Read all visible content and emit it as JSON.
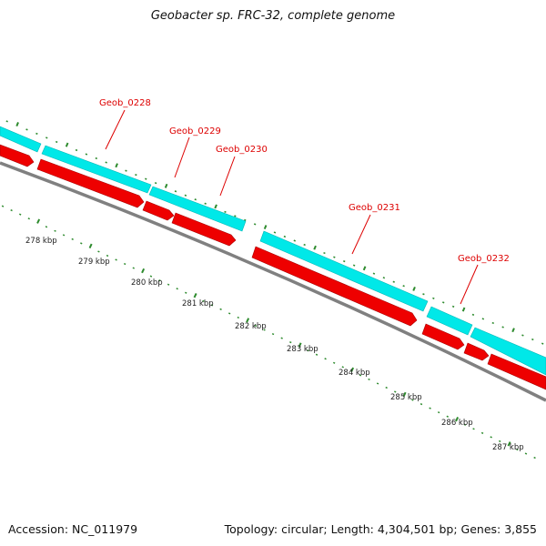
{
  "title": "Geobacter sp. FRC-32, complete genome",
  "footer": {
    "accession": "Accession: NC_011979",
    "summary": "Topology: circular; Length: 4,304,501 bp; Genes: 3,855"
  },
  "colors": {
    "cds_track": "#00e8e8",
    "gene_track": "#ee0000",
    "backbone": "#808080",
    "ticks": "#2e8b2e",
    "labels": "#dd0000"
  },
  "genes": [
    {
      "id": "Geob_0228"
    },
    {
      "id": "Geob_0229"
    },
    {
      "id": "Geob_0230"
    },
    {
      "id": "Geob_0231"
    },
    {
      "id": "Geob_0232"
    }
  ],
  "scale_labels": [
    "278 kbp",
    "279 kbp",
    "280 kbp",
    "281 kbp",
    "282 kbp",
    "283 kbp",
    "284 kbp",
    "285 kbp",
    "286 kbp",
    "287 kbp"
  ]
}
